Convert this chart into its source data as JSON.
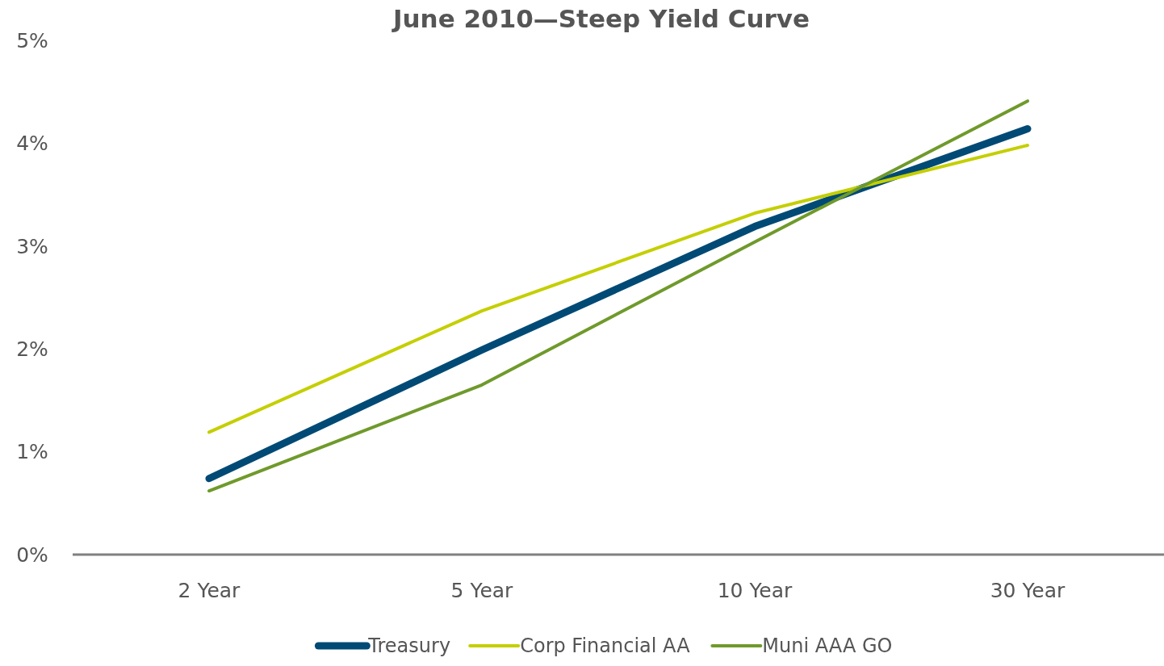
{
  "chart_data": {
    "type": "line",
    "title": "June 2010—Steep Yield Curve",
    "categories": [
      "2 Year",
      "5 Year",
      "10 Year",
      "30 Year"
    ],
    "series": [
      {
        "name": "Treasury",
        "color": "#004a75",
        "values": [
          0.74,
          1.99,
          3.19,
          4.14
        ]
      },
      {
        "name": "Corp Financial AA",
        "color": "#c4cf00",
        "values": [
          1.19,
          2.37,
          3.32,
          3.98
        ]
      },
      {
        "name": "Muni AAA GO",
        "color": "#6f9a2b",
        "values": [
          0.62,
          1.65,
          3.04,
          4.41
        ]
      }
    ],
    "ylim": [
      0,
      5
    ],
    "yticks": [
      {
        "value": 0,
        "label": "0%"
      },
      {
        "value": 1,
        "label": "1%"
      },
      {
        "value": 2,
        "label": "2%"
      },
      {
        "value": 3,
        "label": "3%"
      },
      {
        "value": 4,
        "label": "4%"
      },
      {
        "value": 5,
        "label": "5%"
      }
    ],
    "grid": false,
    "legend": "bottom",
    "marker": "none",
    "line_style": "solid"
  }
}
